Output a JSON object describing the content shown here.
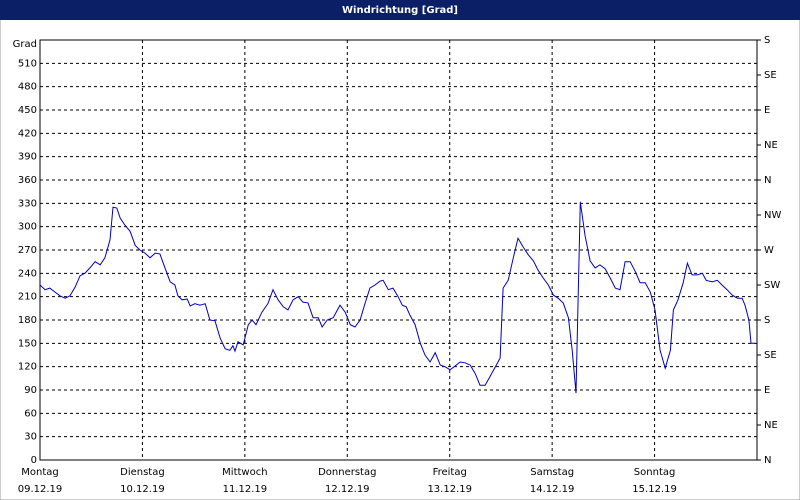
{
  "chart_data": {
    "type": "line",
    "title": "Windrichtung [Grad]",
    "y_label": "Grad",
    "x": [
      0,
      1.2,
      2.3,
      3.5,
      4.7,
      5.9,
      7.0,
      8.2,
      9.4,
      10.5,
      11.7,
      12.9,
      14.1,
      15.2,
      16.4,
      17.1,
      18.0,
      18.8,
      19.9,
      21.1,
      22.3,
      23.4,
      24.6,
      25.8,
      27.0,
      28.1,
      29.3,
      30.5,
      31.6,
      32.3,
      33.3,
      34.5,
      35.2,
      36.3,
      37.5,
      38.7,
      39.8,
      41.0,
      42.2,
      43.4,
      44.5,
      45.2,
      45.7,
      46.4,
      47.6,
      48.8,
      49.7,
      50.6,
      52.0,
      53.4,
      54.6,
      55.8,
      57.0,
      58.1,
      59.3,
      60.5,
      61.6,
      62.8,
      64.0,
      65.2,
      66.1,
      67.3,
      68.7,
      70.3,
      71.5,
      72.7,
      73.8,
      75.0,
      76.2,
      77.3,
      78.5,
      79.7,
      80.4,
      81.6,
      82.7,
      83.9,
      84.9,
      85.8,
      86.7,
      87.9,
      89.1,
      90.2,
      91.4,
      92.6,
      93.8,
      94.9,
      96.1,
      97.3,
      98.4,
      99.6,
      100.8,
      102.0,
      103.1,
      104.3,
      105.5,
      106.7,
      107.8,
      108.5,
      109.7,
      110.9,
      112.0,
      113.2,
      114.4,
      115.6,
      116.7,
      117.9,
      119.1,
      120.3,
      121.4,
      122.6,
      123.8,
      124.7,
      125.6,
      126.6,
      127.7,
      128.9,
      130.1,
      131.2,
      132.4,
      133.6,
      134.8,
      135.9,
      137.1,
      138.3,
      139.5,
      140.6,
      141.8,
      143.0,
      144.1,
      145.3,
      146.5,
      147.7,
      148.4,
      149.5,
      150.7,
      151.7,
      152.8,
      154.0,
      155.2,
      156.1,
      157.5,
      158.7,
      159.8,
      161.0,
      162.2,
      163.4,
      164.5,
      165.2,
      166.1,
      166.6,
      167.5
    ],
    "series": [
      {
        "name": "Windrichtung",
        "color": "#0000c0",
        "values": [
          225,
          219,
          221,
          216,
          211,
          208,
          211,
          222,
          237,
          240,
          247,
          255,
          251,
          260,
          283,
          325,
          324,
          311,
          302,
          294,
          276,
          270,
          266,
          260,
          266,
          265,
          247,
          229,
          225,
          211,
          206,
          207,
          198,
          201,
          199,
          201,
          180,
          179,
          157,
          143,
          141,
          147,
          140,
          152,
          148,
          174,
          180,
          174,
          190,
          201,
          219,
          206,
          197,
          193,
          206,
          210,
          203,
          202,
          183,
          183,
          171,
          180,
          183,
          199,
          190,
          174,
          171,
          180,
          202,
          221,
          225,
          230,
          231,
          219,
          221,
          210,
          199,
          197,
          186,
          174,
          150,
          135,
          126,
          138,
          122,
          120,
          116,
          121,
          126,
          125,
          122,
          111,
          96,
          96,
          108,
          120,
          131,
          221,
          231,
          260,
          285,
          274,
          264,
          256,
          244,
          234,
          225,
          212,
          208,
          202,
          183,
          141,
          86,
          332,
          289,
          256,
          247,
          251,
          246,
          234,
          221,
          219,
          255,
          255,
          242,
          228,
          228,
          216,
          193,
          141,
          118,
          141,
          193,
          206,
          228,
          253,
          238,
          238,
          240,
          231,
          229,
          231,
          225,
          219,
          212,
          208,
          208,
          199,
          180,
          150,
          150
        ]
      }
    ],
    "xlim": [
      0,
      168
    ],
    "xticks": [
      {
        "value": 0,
        "label": "Montag"
      },
      {
        "value": 24,
        "label": "Dienstag"
      },
      {
        "value": 48,
        "label": "Mittwoch"
      },
      {
        "value": 72,
        "label": "Donnerstag"
      },
      {
        "value": 96,
        "label": "Freitag"
      },
      {
        "value": 120,
        "label": "Samstag"
      },
      {
        "value": 144,
        "label": "Sonntag"
      }
    ],
    "xtick_dates": [
      "09.12.19",
      "10.12.19",
      "11.12.19",
      "12.12.19",
      "13.12.19",
      "14.12.19",
      "15.12.19"
    ],
    "ylim": [
      0,
      540
    ],
    "yticks": [
      0,
      30,
      60,
      90,
      120,
      150,
      180,
      210,
      240,
      270,
      300,
      330,
      360,
      390,
      420,
      450,
      480,
      510
    ],
    "y2lim": [
      0,
      540
    ],
    "y2ticks": [
      {
        "value": 0,
        "label": "N"
      },
      {
        "value": 45,
        "label": "NE"
      },
      {
        "value": 90,
        "label": "E"
      },
      {
        "value": 135,
        "label": "SE"
      },
      {
        "value": 180,
        "label": "S"
      },
      {
        "value": 225,
        "label": "SW"
      },
      {
        "value": 270,
        "label": "W"
      },
      {
        "value": 315,
        "label": "NW"
      },
      {
        "value": 360,
        "label": "N"
      },
      {
        "value": 405,
        "label": "NE"
      },
      {
        "value": 450,
        "label": "E"
      },
      {
        "value": 495,
        "label": "SE"
      },
      {
        "value": 540,
        "label": "S"
      }
    ],
    "grid": true
  }
}
